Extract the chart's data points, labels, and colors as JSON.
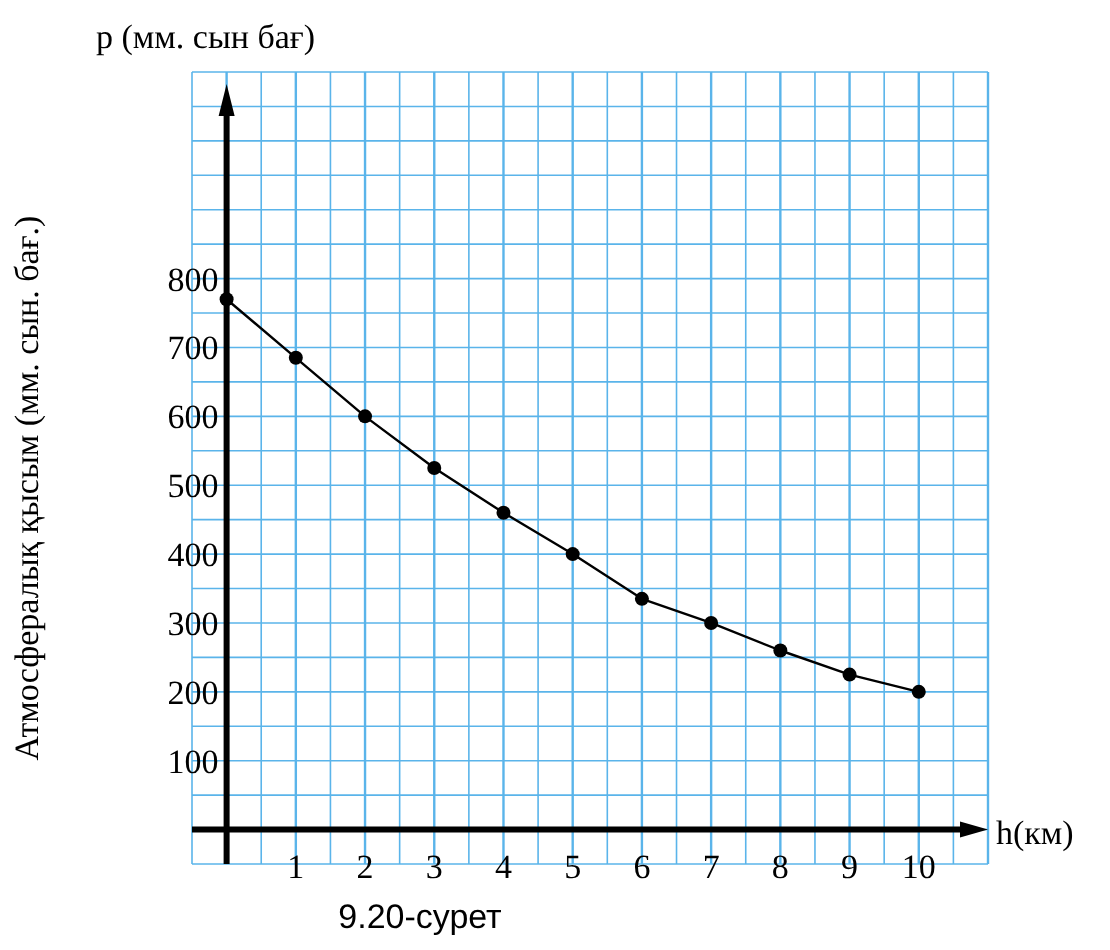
{
  "chart_data": {
    "type": "line",
    "title": "p (мм. сын бағ)",
    "ylabel": "Атмосфералық қысым (мм. сын. бағ.)",
    "xlabel": "h(км)",
    "annotations": [
      "9.20-сурет"
    ],
    "x": [
      0,
      1,
      2,
      3,
      4,
      5,
      6,
      7,
      8,
      9,
      10
    ],
    "series": [
      {
        "color": "#000000",
        "values": [
          770,
          685,
          600,
          525,
          460,
          400,
          335,
          300,
          260,
          225,
          200
        ]
      }
    ],
    "xlim": [
      -0.5,
      11
    ],
    "ylim": [
      -50,
      1100
    ],
    "xticks": [
      1,
      2,
      3,
      4,
      5,
      6,
      7,
      8,
      9,
      10
    ],
    "yticks": [
      100,
      200,
      300,
      400,
      500,
      600,
      700,
      800
    ],
    "grid": true,
    "marker": "circle",
    "line_style": "solid"
  }
}
